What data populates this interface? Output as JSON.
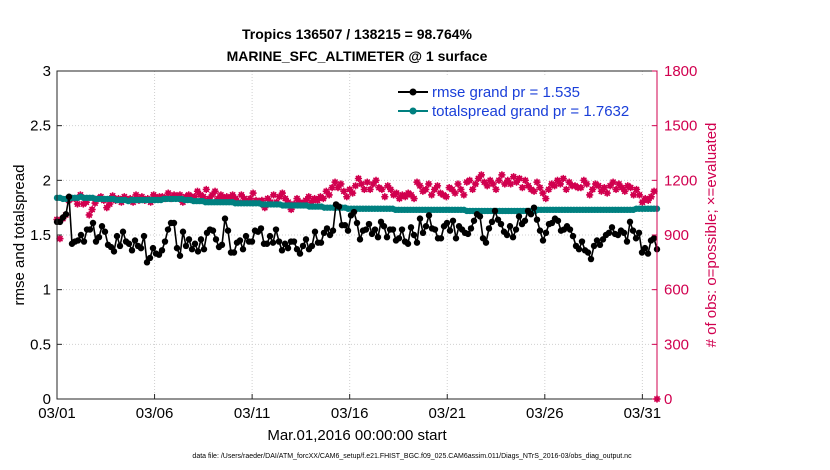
{
  "figure": {
    "title_line1": "Tropics 136507 / 138215 = 98.764%",
    "title_line2": "MARINE_SFC_ALTIMETER @ 1 surface",
    "xlabel": "Mar.01,2016 00:00:00 start",
    "ylabel_left": "rmse and totalspread",
    "ylabel_right": "# of obs: o=possible; ×=evaluated",
    "footer": "data file: /Users/raeder/DAI/ATM_forcXX/CAM6_setup/f.e21.FHIST_BGC.f09_025.CAM6assim.011/Diags_NTrS_2016-03/obs_diag_output.nc"
  },
  "colors": {
    "rmse": "#000000",
    "spread": "#008080",
    "obs": "#d1004f",
    "legend_text": "#1a3fd9"
  },
  "chart_data": {
    "type": "line",
    "x_start": "2016-03-01",
    "x_end": "2016-03-31T18:00",
    "x_ticks": [
      "03/01",
      "03/06",
      "03/11",
      "03/16",
      "03/21",
      "03/26",
      "03/31"
    ],
    "y_left_range": [
      0,
      3
    ],
    "y_left_ticks": [
      "0",
      "0.5",
      "1",
      "1.5",
      "2",
      "2.5",
      "3"
    ],
    "y_right_range": [
      0,
      1800
    ],
    "y_right_ticks": [
      "0",
      "300",
      "600",
      "900",
      "1200",
      "1500",
      "1800"
    ],
    "grid": true,
    "legend_position": "top-right",
    "series": [
      {
        "name": "rmse grand pr = 1.535",
        "axis": "left",
        "marker": "dot-line",
        "values": [
          1.62,
          1.62,
          1.66,
          1.69,
          1.85,
          1.42,
          1.44,
          1.45,
          1.5,
          1.44,
          1.55,
          1.55,
          1.61,
          1.44,
          1.48,
          1.58,
          1.53,
          1.41,
          1.39,
          1.35,
          1.49,
          1.4,
          1.53,
          1.44,
          1.42,
          1.36,
          1.45,
          1.4,
          1.38,
          1.49,
          1.25,
          1.29,
          1.38,
          1.33,
          1.32,
          1.36,
          1.44,
          1.55,
          1.61,
          1.61,
          1.38,
          1.31,
          1.53,
          1.4,
          1.46,
          1.37,
          1.42,
          1.35,
          1.46,
          1.37,
          1.52,
          1.55,
          1.54,
          1.46,
          1.39,
          1.41,
          1.65,
          1.54,
          1.34,
          1.34,
          1.43,
          1.45,
          1.37,
          1.49,
          1.44,
          1.44,
          1.54,
          1.53,
          1.56,
          1.42,
          1.42,
          1.49,
          1.43,
          1.55,
          1.44,
          1.36,
          1.42,
          1.38,
          1.44,
          1.44,
          1.37,
          1.33,
          1.4,
          1.46,
          1.37,
          1.4,
          1.53,
          1.43,
          1.43,
          1.52,
          1.56,
          1.5,
          1.54,
          1.78,
          1.76,
          1.59,
          1.59,
          1.54,
          1.68,
          1.71,
          1.61,
          1.46,
          1.54,
          1.55,
          1.6,
          1.51,
          1.55,
          1.48,
          1.62,
          1.58,
          1.48,
          1.55,
          1.55,
          1.45,
          1.47,
          1.55,
          1.44,
          1.42,
          1.57,
          1.5,
          1.43,
          1.65,
          1.52,
          1.58,
          1.68,
          1.56,
          1.55,
          1.47,
          1.47,
          1.58,
          1.61,
          1.54,
          1.63,
          1.47,
          1.58,
          1.55,
          1.52,
          1.51,
          1.56,
          1.63,
          1.69,
          1.67,
          1.47,
          1.43,
          1.56,
          1.62,
          1.72,
          1.64,
          1.6,
          1.53,
          1.5,
          1.58,
          1.48,
          1.55,
          1.67,
          1.6,
          1.63,
          1.72,
          1.69,
          1.75,
          1.64,
          1.54,
          1.45,
          1.52,
          1.6,
          1.61,
          1.65,
          1.63,
          1.54,
          1.55,
          1.58,
          1.55,
          1.49,
          1.4,
          1.37,
          1.44,
          1.36,
          1.34,
          1.28,
          1.4,
          1.45,
          1.41,
          1.46,
          1.5,
          1.52,
          1.57,
          1.51,
          1.5,
          1.54,
          1.52,
          1.44,
          1.62,
          1.54,
          1.47,
          1.52,
          1.34,
          1.38,
          1.33,
          1.45,
          1.47,
          1.37
        ]
      },
      {
        "name": "totalspread grand pr = 1.7632",
        "axis": "left",
        "marker": "dot-line",
        "values": [
          1.84,
          1.84,
          1.83,
          1.83,
          1.83,
          1.84,
          1.84,
          1.84,
          1.85,
          1.84,
          1.84,
          1.84,
          1.84,
          1.83,
          1.83,
          1.83,
          1.83,
          1.83,
          1.83,
          1.83,
          1.82,
          1.82,
          1.82,
          1.82,
          1.81,
          1.82,
          1.82,
          1.82,
          1.82,
          1.82,
          1.82,
          1.82,
          1.82,
          1.82,
          1.82,
          1.82,
          1.83,
          1.83,
          1.83,
          1.83,
          1.83,
          1.83,
          1.83,
          1.82,
          1.82,
          1.82,
          1.81,
          1.81,
          1.81,
          1.81,
          1.8,
          1.8,
          1.8,
          1.8,
          1.8,
          1.8,
          1.8,
          1.8,
          1.8,
          1.8,
          1.79,
          1.79,
          1.79,
          1.79,
          1.79,
          1.79,
          1.79,
          1.79,
          1.79,
          1.78,
          1.78,
          1.78,
          1.78,
          1.78,
          1.78,
          1.78,
          1.77,
          1.77,
          1.77,
          1.77,
          1.77,
          1.77,
          1.77,
          1.77,
          1.77,
          1.76,
          1.76,
          1.76,
          1.76,
          1.76,
          1.75,
          1.75,
          1.75,
          1.75,
          1.75,
          1.75,
          1.75,
          1.75,
          1.74,
          1.74,
          1.74,
          1.74,
          1.74,
          1.74,
          1.74,
          1.74,
          1.74,
          1.74,
          1.74,
          1.74,
          1.74,
          1.74,
          1.74,
          1.74,
          1.73,
          1.73,
          1.73,
          1.73,
          1.73,
          1.73,
          1.73,
          1.73,
          1.73,
          1.73,
          1.73,
          1.73,
          1.73,
          1.73,
          1.73,
          1.73,
          1.73,
          1.73,
          1.73,
          1.73,
          1.73,
          1.73,
          1.73,
          1.73,
          1.72,
          1.72,
          1.72,
          1.72,
          1.72,
          1.72,
          1.72,
          1.72,
          1.72,
          1.72,
          1.72,
          1.72,
          1.72,
          1.72,
          1.72,
          1.72,
          1.72,
          1.72,
          1.72,
          1.72,
          1.72,
          1.72,
          1.72,
          1.72,
          1.73,
          1.73,
          1.73,
          1.73,
          1.73,
          1.73,
          1.73,
          1.73,
          1.73,
          1.73,
          1.73,
          1.73,
          1.73,
          1.73,
          1.73,
          1.73,
          1.73,
          1.73,
          1.73,
          1.73,
          1.73,
          1.73,
          1.73,
          1.73,
          1.73,
          1.73,
          1.73,
          1.73,
          1.73,
          1.73,
          1.73,
          1.73,
          1.73,
          1.74,
          1.74,
          1.74,
          1.74,
          1.74,
          1.74,
          1.74,
          1.74
        ]
      },
      {
        "name": "# of obs",
        "axis": "right",
        "marker": "asterisk",
        "values": [
          985,
          880,
          990,
          1010,
          1090,
          1100,
          1100,
          1070,
          1120,
          1070,
          1080,
          1010,
          1040,
          1075,
          1100,
          1110,
          1090,
          1050,
          1070,
          1115,
          1090,
          1100,
          1080,
          1110,
          1095,
          1100,
          1080,
          1120,
          1090,
          1110,
          1090,
          1100,
          1080,
          1120,
          1100,
          1110,
          1110,
          1100,
          1130,
          1100,
          1120,
          1110,
          1120,
          1080,
          1110,
          1120,
          1110,
          1110,
          1140,
          1120,
          1110,
          1150,
          1100,
          1120,
          1140,
          1100,
          1120,
          1100,
          1110,
          1100,
          1120,
          1100,
          1080,
          1120,
          1100,
          1080,
          1100,
          1130,
          1090,
          1080,
          1090,
          1050,
          1100,
          1080,
          1120,
          1080,
          1110,
          1130,
          1100,
          1080,
          1040,
          1070,
          1100,
          1080,
          1070,
          1090,
          1110,
          1080,
          1100,
          1090,
          1110,
          1100,
          1140,
          1120,
          1160,
          1190,
          1160,
          1180,
          1140,
          1110,
          1150,
          1130,
          1170,
          1210,
          1180,
          1150,
          1190,
          1150,
          1180,
          1200,
          1160,
          1150,
          1110,
          1170,
          1150,
          1120,
          1130,
          1100,
          1120,
          1110,
          1130,
          1120,
          1100,
          1190,
          1170,
          1140,
          1150,
          1180,
          1120,
          1150,
          1170,
          1130,
          1120,
          1110,
          1160,
          1150,
          1130,
          1180,
          1150,
          1120,
          1190,
          1200,
          1150,
          1180,
          1210,
          1230,
          1190,
          1170,
          1200,
          1180,
          1150,
          1200,
          1230,
          1180,
          1200,
          1180,
          1220,
          1190,
          1210,
          1160,
          1200,
          1170,
          1150,
          1140,
          1190,
          1160,
          1130,
          1100,
          1150,
          1180,
          1170,
          1200,
          1180,
          1210,
          1150,
          1190,
          1170,
          1170,
          1160,
          1160,
          1200,
          1180,
          1120,
          1150,
          1180,
          1170,
          1140,
          1160,
          1130,
          1170,
          1190,
          1150,
          1180,
          1160,
          1140,
          1170,
          1160,
          1120,
          1150,
          1120,
          1080,
          1100,
          1090,
          1110,
          1140,
          0
        ]
      }
    ]
  }
}
